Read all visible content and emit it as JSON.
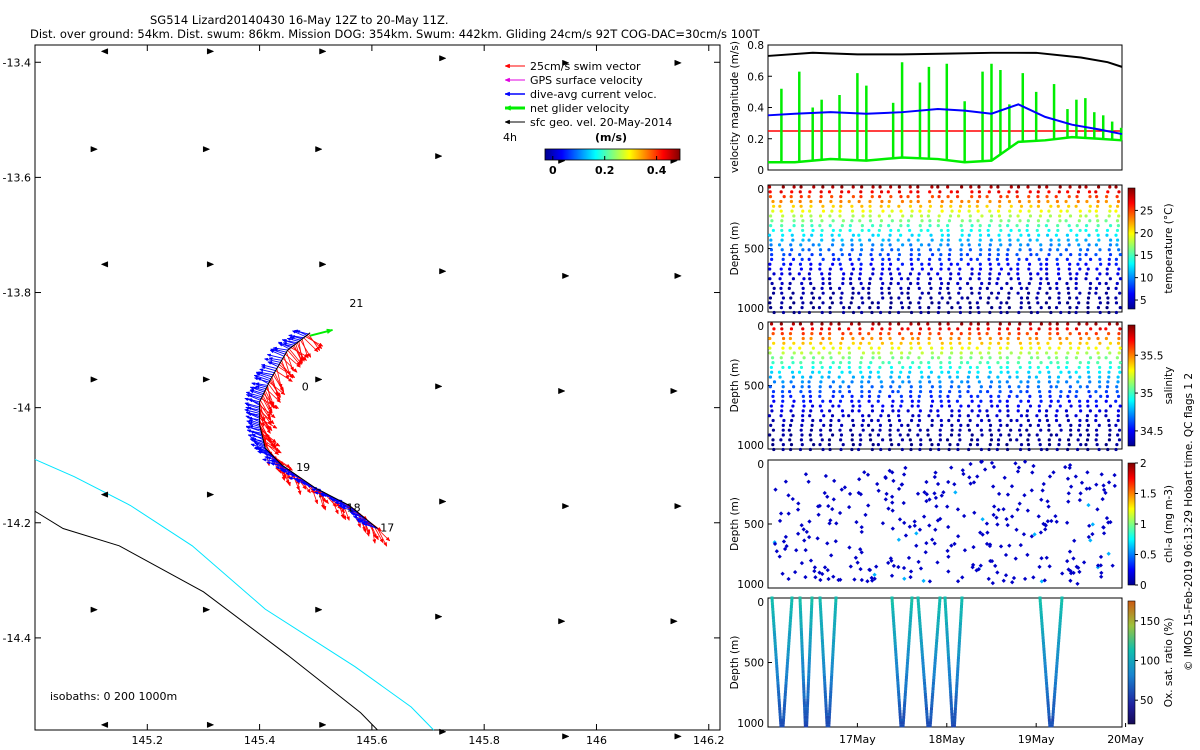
{
  "title": {
    "line1": "SG514 Lizard20140430 16-May 12Z to 20-May 11Z.",
    "line2": "Dist. over ground: 54km. Dist. swum: 86km. Mission DOG: 354km. Swum: 442km. Gliding 24cm/s 92T COG-DAC=30cm/s 100T"
  },
  "side_note": "© IMOS 15-Feb-2019 06:13:29 Hobart time. QC flags 1  2",
  "colors": {
    "swim": "#ff0000",
    "gps": "#e000e0",
    "dac": "#0000ff",
    "net": "#00ee00",
    "sfc": "#000000",
    "iso200": "#00e5ff",
    "iso1000": "#000000"
  },
  "chart_data": [
    {
      "type": "map",
      "xlim": [
        145.0,
        146.22
      ],
      "ylim": [
        -14.56,
        -13.37
      ],
      "x_ticks": [
        145.2,
        145.4,
        145.6,
        145.8,
        146,
        146.2
      ],
      "x_tick_labels": [
        "145.2",
        "145.4",
        "145.6",
        "145.8",
        "146",
        "146.2"
      ],
      "y_ticks": [
        -13.4,
        -13.6,
        -13.8,
        -14,
        -14.2,
        -14.4
      ],
      "y_tick_labels": [
        "-13.4",
        "-13.6",
        "-13.8",
        "-14",
        "-14.2",
        "-14.4"
      ],
      "legend": {
        "entries": [
          "25cm/s swim vector",
          "GPS surface velocity",
          "dive-avg current veloc.",
          "net glider velocity",
          "sfc geo. vel. 20-May-2014"
        ],
        "time_label": "4h",
        "colorbar_title": "(m/s)",
        "colorbar_ticks": [
          0,
          0.2,
          0.4
        ],
        "colorbar_tick_labels": [
          "0",
          "0.2",
          "0.4"
        ],
        "colorbar_range": [
          -0.03,
          0.49
        ]
      },
      "isobath_label": "isobaths: 0   200  1000m",
      "isobath_200m": [
        [
          145.0,
          -14.09
        ],
        [
          145.07,
          -14.12
        ],
        [
          145.17,
          -14.17
        ],
        [
          145.28,
          -14.24
        ],
        [
          145.41,
          -14.35
        ],
        [
          145.57,
          -14.45
        ],
        [
          145.67,
          -14.52
        ],
        [
          145.71,
          -14.56
        ]
      ],
      "isobath_1000m": [
        [
          145.0,
          -14.18
        ],
        [
          145.05,
          -14.21
        ],
        [
          145.15,
          -14.24
        ],
        [
          145.3,
          -14.32
        ],
        [
          145.45,
          -14.43
        ],
        [
          145.58,
          -14.53
        ],
        [
          145.61,
          -14.56
        ]
      ],
      "track": [
        [
          145.61,
          -14.21
        ],
        [
          145.56,
          -14.17
        ],
        [
          145.5,
          -14.14
        ],
        [
          145.44,
          -14.1
        ],
        [
          145.41,
          -14.07
        ],
        [
          145.4,
          -14.03
        ],
        [
          145.4,
          -13.99
        ],
        [
          145.42,
          -13.95
        ],
        [
          145.45,
          -13.9
        ],
        [
          145.49,
          -13.87
        ]
      ],
      "net_velocity_vector": [
        [
          145.49,
          -13.875
        ],
        [
          145.53,
          -13.865
        ]
      ],
      "day_labels": [
        {
          "text": "17",
          "lon": 145.615,
          "lat": -14.215
        },
        {
          "text": "18",
          "lon": 145.555,
          "lat": -14.18
        },
        {
          "text": "19",
          "lon": 145.465,
          "lat": -14.11
        },
        {
          "text": "0",
          "lon": 145.475,
          "lat": -13.97
        },
        {
          "text": "21",
          "lon": 145.56,
          "lat": -13.825
        }
      ],
      "sfc_geo_vel_grid": {
        "lons": [
          145.12,
          145.32,
          145.52,
          145.72,
          145.93,
          146.13
        ],
        "lats": [
          -13.38,
          -13.55,
          -13.75,
          -13.95,
          -14.15,
          -14.35,
          -14.55
        ]
      }
    },
    {
      "type": "line",
      "ylabel": "velocity magnitude (m/s)",
      "ylim": [
        0,
        0.8
      ],
      "y_ticks": [
        0,
        0.2,
        0.4,
        0.6,
        0.8
      ],
      "y_tick_labels": [
        "0",
        "0.2",
        "0.4",
        "0.6",
        "0.8"
      ],
      "xlim": [
        16.5,
        20.46
      ],
      "series": [
        {
          "name": "sfc geo. vel.",
          "color": "#000000",
          "x": [
            16.5,
            17.0,
            17.5,
            18.0,
            18.5,
            19.0,
            19.5,
            20.0,
            20.3,
            20.46
          ],
          "values": [
            0.73,
            0.75,
            0.74,
            0.74,
            0.745,
            0.75,
            0.75,
            0.72,
            0.69,
            0.66
          ]
        },
        {
          "name": "25cm/s swim",
          "color": "#ff0000",
          "x": [
            16.5,
            20.46
          ],
          "values": [
            0.25,
            0.25
          ]
        },
        {
          "name": "dive-avg current",
          "color": "#0000ff",
          "x": [
            16.5,
            16.8,
            17.2,
            17.6,
            18.0,
            18.4,
            18.7,
            19.0,
            19.3,
            19.6,
            19.9,
            20.2,
            20.46
          ],
          "values": [
            0.35,
            0.36,
            0.37,
            0.36,
            0.37,
            0.39,
            0.38,
            0.36,
            0.42,
            0.34,
            0.29,
            0.26,
            0.23
          ]
        },
        {
          "name": "net glider velocity (low)",
          "color": "#00ee00",
          "x": [
            16.5,
            16.8,
            17.2,
            17.6,
            18.0,
            18.4,
            18.7,
            19.0,
            19.3,
            19.6,
            19.9,
            20.2,
            20.46
          ],
          "values": [
            0.05,
            0.05,
            0.07,
            0.06,
            0.08,
            0.07,
            0.05,
            0.06,
            0.18,
            0.19,
            0.21,
            0.2,
            0.19
          ]
        },
        {
          "name": "net glider velocity (high)",
          "x": [
            16.65,
            16.85,
            17.0,
            17.1,
            17.3,
            17.5,
            17.6,
            17.9,
            18.0,
            18.2,
            18.3,
            18.5,
            18.7,
            18.9,
            19.0,
            19.1,
            19.2,
            19.35,
            19.5,
            19.7,
            19.85,
            19.95,
            20.05,
            20.15,
            20.25,
            20.35,
            20.45
          ],
          "values": [
            0.52,
            0.63,
            0.4,
            0.45,
            0.48,
            0.62,
            0.54,
            0.43,
            0.69,
            0.56,
            0.66,
            0.68,
            0.44,
            0.63,
            0.68,
            0.64,
            0.42,
            0.62,
            0.5,
            0.55,
            0.39,
            0.45,
            0.46,
            0.37,
            0.35,
            0.31,
            0.27
          ]
        }
      ]
    },
    {
      "type": "scatter",
      "panel": "temperature",
      "ylabel": "Depth (m)",
      "colorbar_label": "temperature (°C)",
      "ylim": [
        1000,
        0
      ],
      "y_tick_labels": [
        "0",
        "500",
        "1000"
      ],
      "colorbar_ticks": [
        5,
        10,
        15,
        20,
        25
      ],
      "colorbar_tick_labels": [
        "5",
        "10",
        "15",
        "20",
        "25"
      ],
      "color_range": [
        3,
        30
      ],
      "profile_count": 36
    },
    {
      "type": "scatter",
      "panel": "salinity",
      "ylabel": "Depth (m)",
      "colorbar_label": "salinity",
      "ylim": [
        1000,
        0
      ],
      "y_tick_labels": [
        "0",
        "500",
        "1000"
      ],
      "colorbar_ticks": [
        34.5,
        35,
        35.5
      ],
      "colorbar_tick_labels": [
        "34.5",
        "35",
        "35.5"
      ],
      "color_range": [
        34.3,
        35.9
      ],
      "profile_count": 36
    },
    {
      "type": "scatter",
      "panel": "chl-a",
      "ylabel": "Depth (m)",
      "colorbar_label": "chl-a (mg m-3)",
      "ylim": [
        1000,
        0
      ],
      "y_tick_labels": [
        "0",
        "500",
        "1000"
      ],
      "colorbar_ticks": [
        0,
        0.5,
        1,
        1.5,
        2
      ],
      "colorbar_tick_labels": [
        "0",
        "0.5",
        "1",
        "1.5",
        "2"
      ],
      "color_range": [
        0,
        2
      ]
    },
    {
      "type": "scatter",
      "panel": "oxygen",
      "ylabel": "Depth (m)",
      "colorbar_label": "Ox. sat. ratio (%)",
      "ylim": [
        1000,
        0
      ],
      "y_tick_labels": [
        "0",
        "500",
        "1000"
      ],
      "colorbar_ticks": [
        50,
        100,
        150
      ],
      "colorbar_tick_labels": [
        "50",
        "100",
        "150"
      ],
      "color_range": [
        20,
        175
      ],
      "x_ticks": [
        17,
        18,
        19,
        20
      ],
      "x_tick_labels": [
        "17May",
        "18May",
        "19May",
        "20May"
      ]
    }
  ]
}
